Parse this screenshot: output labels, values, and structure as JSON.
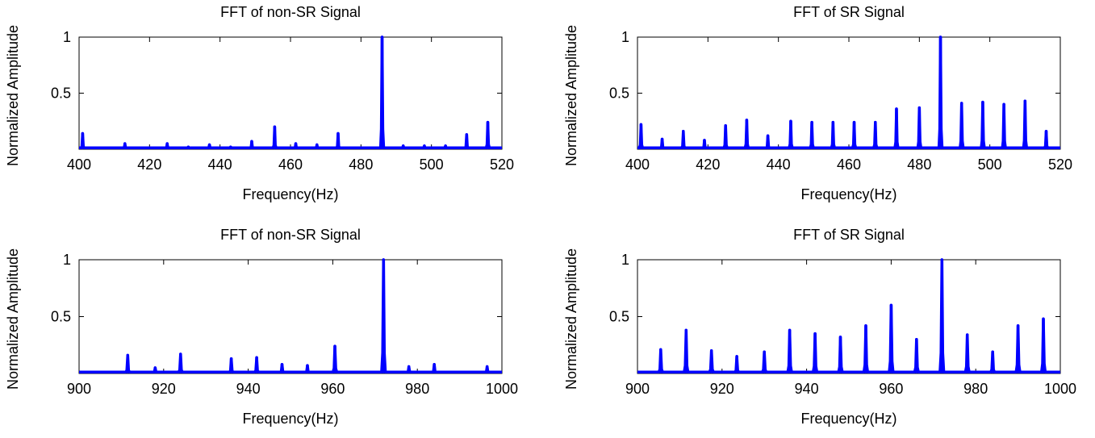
{
  "chart_data": [
    {
      "type": "line",
      "title": "FFT of non-SR Signal",
      "xlabel": "Frequency(Hz)",
      "ylabel": "Normalized Amplitude",
      "xlim": [
        400,
        520
      ],
      "ylim": [
        0,
        1
      ],
      "xticks": [
        400,
        420,
        440,
        460,
        480,
        500,
        520
      ],
      "yticks": [
        0.5,
        1
      ],
      "ytick_labels": [
        "0.5",
        "1"
      ],
      "grid": false,
      "legend": "none",
      "color": "#0000ff",
      "peaks": [
        [
          401,
          0.14
        ],
        [
          413,
          0.05
        ],
        [
          425,
          0.05
        ],
        [
          431,
          0.02
        ],
        [
          437,
          0.04
        ],
        [
          443,
          0.02
        ],
        [
          449,
          0.07
        ],
        [
          455.5,
          0.2
        ],
        [
          461.5,
          0.05
        ],
        [
          467.5,
          0.04
        ],
        [
          473.5,
          0.14
        ],
        [
          486,
          1.0
        ],
        [
          492,
          0.03
        ],
        [
          498,
          0.03
        ],
        [
          504,
          0.03
        ],
        [
          510,
          0.13
        ],
        [
          516,
          0.24
        ]
      ]
    },
    {
      "type": "line",
      "title": "FFT of SR Signal",
      "xlabel": "Frequency(Hz)",
      "ylabel": "Normalized Amplitude",
      "xlim": [
        400,
        520
      ],
      "ylim": [
        0,
        1
      ],
      "xticks": [
        400,
        420,
        440,
        460,
        480,
        500,
        520
      ],
      "yticks": [
        0.5,
        1
      ],
      "ytick_labels": [
        "0.5",
        "1"
      ],
      "grid": false,
      "legend": "none",
      "color": "#0000ff",
      "peaks": [
        [
          401,
          0.22
        ],
        [
          407,
          0.09
        ],
        [
          413,
          0.16
        ],
        [
          419,
          0.08
        ],
        [
          425,
          0.21
        ],
        [
          431,
          0.26
        ],
        [
          437,
          0.12
        ],
        [
          443.5,
          0.25
        ],
        [
          449.5,
          0.24
        ],
        [
          455.5,
          0.24
        ],
        [
          461.5,
          0.24
        ],
        [
          467.5,
          0.24
        ],
        [
          473.5,
          0.36
        ],
        [
          480,
          0.37
        ],
        [
          486,
          1.0
        ],
        [
          492,
          0.41
        ],
        [
          498,
          0.42
        ],
        [
          504,
          0.4
        ],
        [
          510,
          0.43
        ],
        [
          516,
          0.16
        ]
      ]
    },
    {
      "type": "line",
      "title": "FFT of non-SR Signal",
      "xlabel": "Frequency(Hz)",
      "ylabel": "Normalized Amplitude",
      "xlim": [
        900,
        1000
      ],
      "ylim": [
        0,
        1
      ],
      "xticks": [
        900,
        920,
        940,
        960,
        980,
        1000
      ],
      "yticks": [
        0.5,
        1
      ],
      "ytick_labels": [
        "0.5",
        "1"
      ],
      "grid": false,
      "legend": "none",
      "color": "#0000ff",
      "peaks": [
        [
          911.5,
          0.16
        ],
        [
          918,
          0.05
        ],
        [
          924,
          0.17
        ],
        [
          936,
          0.13
        ],
        [
          942,
          0.14
        ],
        [
          948,
          0.08
        ],
        [
          954,
          0.07
        ],
        [
          960.5,
          0.24
        ],
        [
          972,
          1.0
        ],
        [
          978,
          0.06
        ],
        [
          984,
          0.08
        ],
        [
          996.5,
          0.06
        ]
      ]
    },
    {
      "type": "line",
      "title": "FFT of SR Signal",
      "xlabel": "Frequency(Hz)",
      "ylabel": "Normalized Amplitude",
      "xlim": [
        900,
        1000
      ],
      "ylim": [
        0,
        1
      ],
      "xticks": [
        900,
        920,
        940,
        960,
        980,
        1000
      ],
      "yticks": [
        0.5,
        1
      ],
      "ytick_labels": [
        "0.5",
        "1"
      ],
      "grid": false,
      "legend": "none",
      "color": "#0000ff",
      "peaks": [
        [
          905.5,
          0.21
        ],
        [
          911.5,
          0.38
        ],
        [
          917.5,
          0.2
        ],
        [
          923.5,
          0.15
        ],
        [
          930,
          0.19
        ],
        [
          936,
          0.38
        ],
        [
          942,
          0.35
        ],
        [
          948,
          0.32
        ],
        [
          954,
          0.42
        ],
        [
          960,
          0.6
        ],
        [
          966,
          0.3
        ],
        [
          972,
          1.0
        ],
        [
          978,
          0.34
        ],
        [
          984,
          0.19
        ],
        [
          990,
          0.42
        ],
        [
          996,
          0.48
        ]
      ]
    }
  ]
}
